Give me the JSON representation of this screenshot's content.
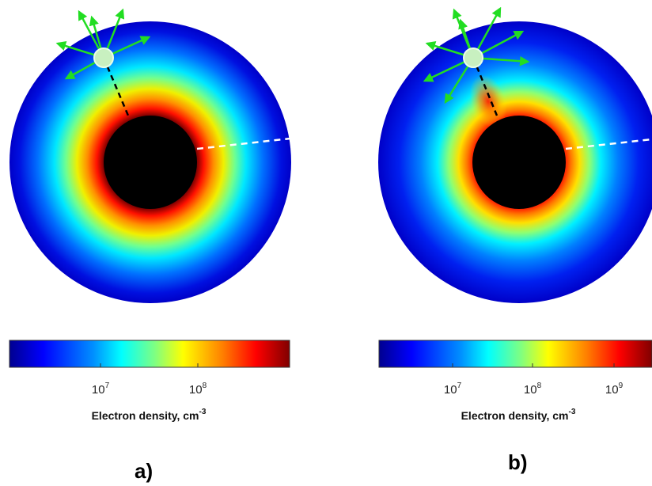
{
  "panels": [
    {
      "id": "a",
      "label": "a)",
      "colorbar_label": "Electron density, cm",
      "colorbar_label_exponent": "-3",
      "colorbar_ticks": [
        {
          "base": "10",
          "exp": "7"
        },
        {
          "base": "10",
          "exp": "8"
        }
      ]
    },
    {
      "id": "b",
      "label": "b)",
      "colorbar_label": "Electron density, cm",
      "colorbar_label_exponent": "-3",
      "colorbar_ticks": [
        {
          "base": "10",
          "exp": "7"
        },
        {
          "base": "10",
          "exp": "8"
        },
        {
          "base": "10",
          "exp": "9"
        }
      ]
    }
  ],
  "colormap": [
    "#00008f",
    "#0000ff",
    "#0080ff",
    "#00ffff",
    "#80ff80",
    "#ffff00",
    "#ff8000",
    "#ff0000",
    "#800000"
  ],
  "colors": {
    "core": "#000000",
    "arrows": "#22dd22",
    "source": "#c8f0c0",
    "probe_line_inner": "#000000",
    "probe_line_outer": "#ffffff"
  }
}
